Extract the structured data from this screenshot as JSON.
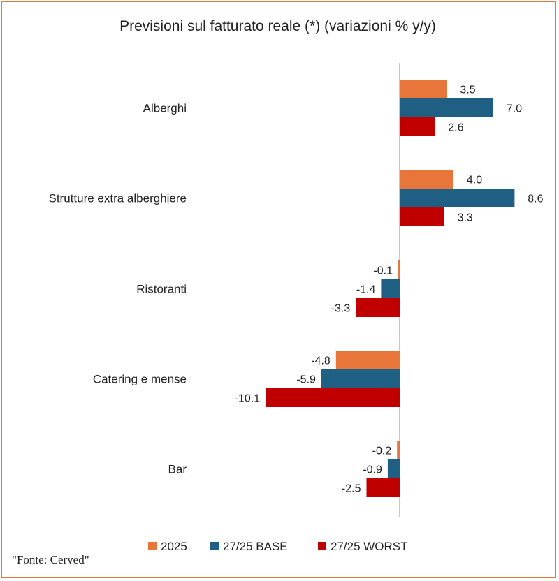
{
  "chart_data": {
    "type": "bar",
    "orientation": "horizontal",
    "title": "Previsioni sul fatturato reale (*) (variazioni % y/y)",
    "categories": [
      "Alberghi",
      "Strutture extra alberghiere",
      "Ristoranti",
      "Catering e mense",
      "Bar"
    ],
    "series": [
      {
        "name": "2025",
        "color": "#E8763A",
        "values": [
          3.5,
          4.0,
          -0.1,
          -4.8,
          -0.2
        ]
      },
      {
        "name": "27/25 BASE",
        "color": "#1F5F84",
        "values": [
          7.0,
          8.6,
          -1.4,
          -5.9,
          -0.9
        ]
      },
      {
        "name": "27/25 WORST",
        "color": "#C00000",
        "values": [
          2.6,
          3.3,
          -3.3,
          -10.1,
          -2.5
        ]
      }
    ],
    "xlim": [
      -10.1,
      8.6
    ],
    "legend": "bottom",
    "grid": false
  },
  "source": "\"Fonte: Cerved\""
}
